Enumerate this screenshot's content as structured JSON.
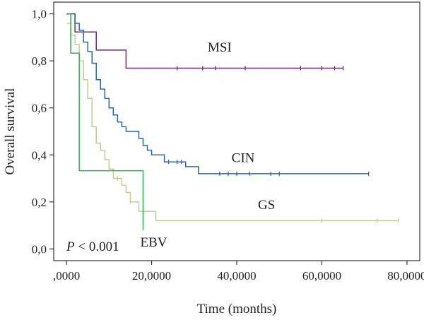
{
  "chart_data": {
    "type": "line",
    "subtype": "kaplan-meier",
    "title": "",
    "xlabel": "Time (months)",
    "ylabel": "Overall survival",
    "xlim": [
      -3,
      83
    ],
    "ylim": [
      -0.05,
      1.05
    ],
    "x_ticks": [
      0,
      20,
      40,
      60,
      80
    ],
    "x_tick_labels": [
      ",0000",
      "20,0000",
      "40,0000",
      "60,0000",
      "80,0000"
    ],
    "y_ticks": [
      0,
      0.2,
      0.4,
      0.6,
      0.8,
      1.0
    ],
    "y_tick_labels": [
      "0,0",
      "0,2",
      "0,4",
      "0,6",
      "0,8",
      "1,0"
    ],
    "grid": false,
    "annotation": {
      "prefix": "P",
      "rest": " < 0.001"
    },
    "series": [
      {
        "name": "MSI",
        "color": "#6e2a6e",
        "x": [
          0,
          2,
          7,
          14,
          65
        ],
        "y": [
          1.0,
          0.923,
          0.846,
          0.769,
          0.769
        ],
        "censored_x": [
          26,
          32,
          35,
          42,
          55,
          60,
          63,
          65
        ],
        "label_x": 36,
        "label_y": 0.84
      },
      {
        "name": "CIN",
        "color": "#2e64b0",
        "x": [
          0,
          2,
          3,
          4,
          5,
          6,
          7,
          8,
          9,
          10,
          11,
          12,
          13,
          14,
          16,
          17,
          18,
          19,
          20,
          21,
          22,
          23,
          28,
          31,
          71
        ],
        "y": [
          1.0,
          0.96,
          0.93,
          0.88,
          0.84,
          0.79,
          0.72,
          0.68,
          0.64,
          0.6,
          0.57,
          0.54,
          0.52,
          0.5,
          0.5,
          0.47,
          0.44,
          0.42,
          0.4,
          0.4,
          0.4,
          0.37,
          0.35,
          0.32,
          0.32
        ],
        "censored_x": [
          24,
          26,
          27,
          36,
          38,
          40,
          43,
          48,
          50,
          71
        ],
        "label_x": 41.5,
        "label_y": 0.37
      },
      {
        "name": "GS",
        "color": "#c6ca97",
        "x": [
          0,
          1,
          2,
          3,
          4,
          5,
          6,
          7,
          8,
          9,
          10,
          11,
          13,
          14,
          15,
          17,
          18,
          21,
          78
        ],
        "y": [
          0.96,
          0.91,
          0.87,
          0.8,
          0.72,
          0.64,
          0.52,
          0.45,
          0.42,
          0.38,
          0.34,
          0.3,
          0.27,
          0.24,
          0.2,
          0.16,
          0.16,
          0.12,
          0.12
        ],
        "censored_x": [
          12,
          15,
          60,
          73,
          78
        ],
        "label_x": 47,
        "label_y": 0.17
      },
      {
        "name": "EBV",
        "color": "#2db34a",
        "x": [
          0,
          1,
          3,
          18,
          18
        ],
        "y": [
          1.0,
          0.833,
          0.333,
          0.333,
          0.08
        ],
        "censored_x": [],
        "label_x": 20.5,
        "label_y": 0.01
      }
    ]
  }
}
